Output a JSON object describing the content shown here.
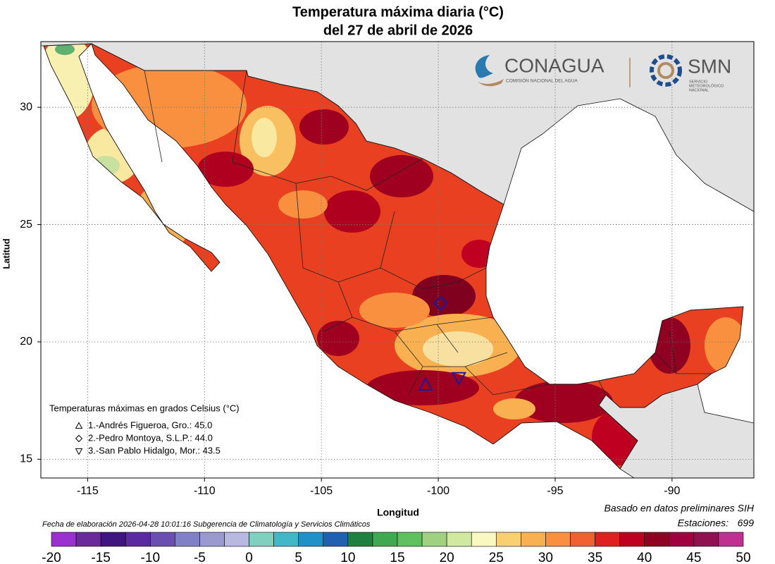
{
  "chart_data": {
    "type": "map",
    "title": "Temperatura máxima diaria (°C)",
    "subtitle": "del 27 de abril de 2026",
    "x_label": "Longitud",
    "y_label": "Latitud",
    "xlim": [
      -117,
      -86.5
    ],
    "ylim": [
      14.2,
      32.8
    ],
    "xticks": [
      -115,
      -110,
      -105,
      -100,
      -95,
      -90
    ],
    "yticks": [
      15,
      20,
      25,
      30
    ],
    "grid": true,
    "legend": {
      "title": "Temperaturas máximas en grados Celsius (°C)",
      "position": "lower left"
    },
    "stations": [
      {
        "label": "1.-Andrés Figueroa, Gro.: 45.0",
        "marker": "triangle",
        "lon": -100.54,
        "lat": 18.17
      },
      {
        "label": "2.-Pedro Montoya, S.L.P.: 44.0",
        "marker": "diamond",
        "lon": -99.9,
        "lat": 21.65
      },
      {
        "label": "3.-San Pablo Hidalgo, Mor.: 43.5",
        "marker": "triangle-down",
        "lon": -99.12,
        "lat": 18.47
      }
    ],
    "station_color": "#1a1aa0",
    "colorbar": {
      "lim": [
        -20,
        50
      ],
      "ticks": [
        -20,
        -15,
        -10,
        -5,
        0,
        5,
        10,
        15,
        20,
        25,
        30,
        35,
        40,
        45,
        50
      ],
      "colors": [
        "#9b30d0",
        "#6a2a9a",
        "#3f1580",
        "#5a2aa0",
        "#6a4fb0",
        "#8080c8",
        "#9a9ad0",
        "#b8b8e0",
        "#80d0c0",
        "#40b8c8",
        "#2090c8",
        "#2060b0",
        "#208040",
        "#40a850",
        "#60c060",
        "#a0d080",
        "#d0e8a0",
        "#f8f8c0",
        "#f8d070",
        "#f8b050",
        "#f89040",
        "#f06030",
        "#e02020",
        "#c00020",
        "#900020",
        "#a00040",
        "#901050",
        "#c03090"
      ]
    }
  },
  "notes": {
    "source": "Basado en datos preliminares SIH",
    "stations_label": "Estaciones:",
    "stations_count": 699,
    "date": "Fecha de elaboración 2026-04-28 10:01:16 Subgerencia de Climatología y Servicios Climáticos"
  },
  "logos": {
    "conagua": "CONAGUA",
    "conagua_sub": "COMISIÓN NACIONAL DEL AGUA",
    "smn": "SMN",
    "smn_sub": [
      "SERVICIO",
      "METEOROLÓGICO",
      "NACIONAL"
    ]
  }
}
